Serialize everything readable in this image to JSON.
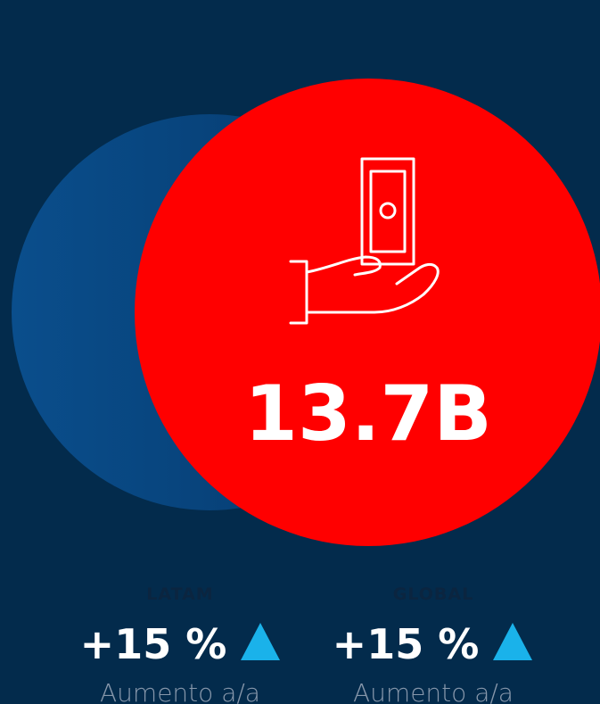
{
  "main": {
    "value": "13.7B"
  },
  "stats": [
    {
      "label": "LATAM",
      "value": "+15 %",
      "caption": "Aumento a/a"
    },
    {
      "label": "GLOBAL",
      "value": "+15 %",
      "caption": "Aumento a/a"
    }
  ]
}
